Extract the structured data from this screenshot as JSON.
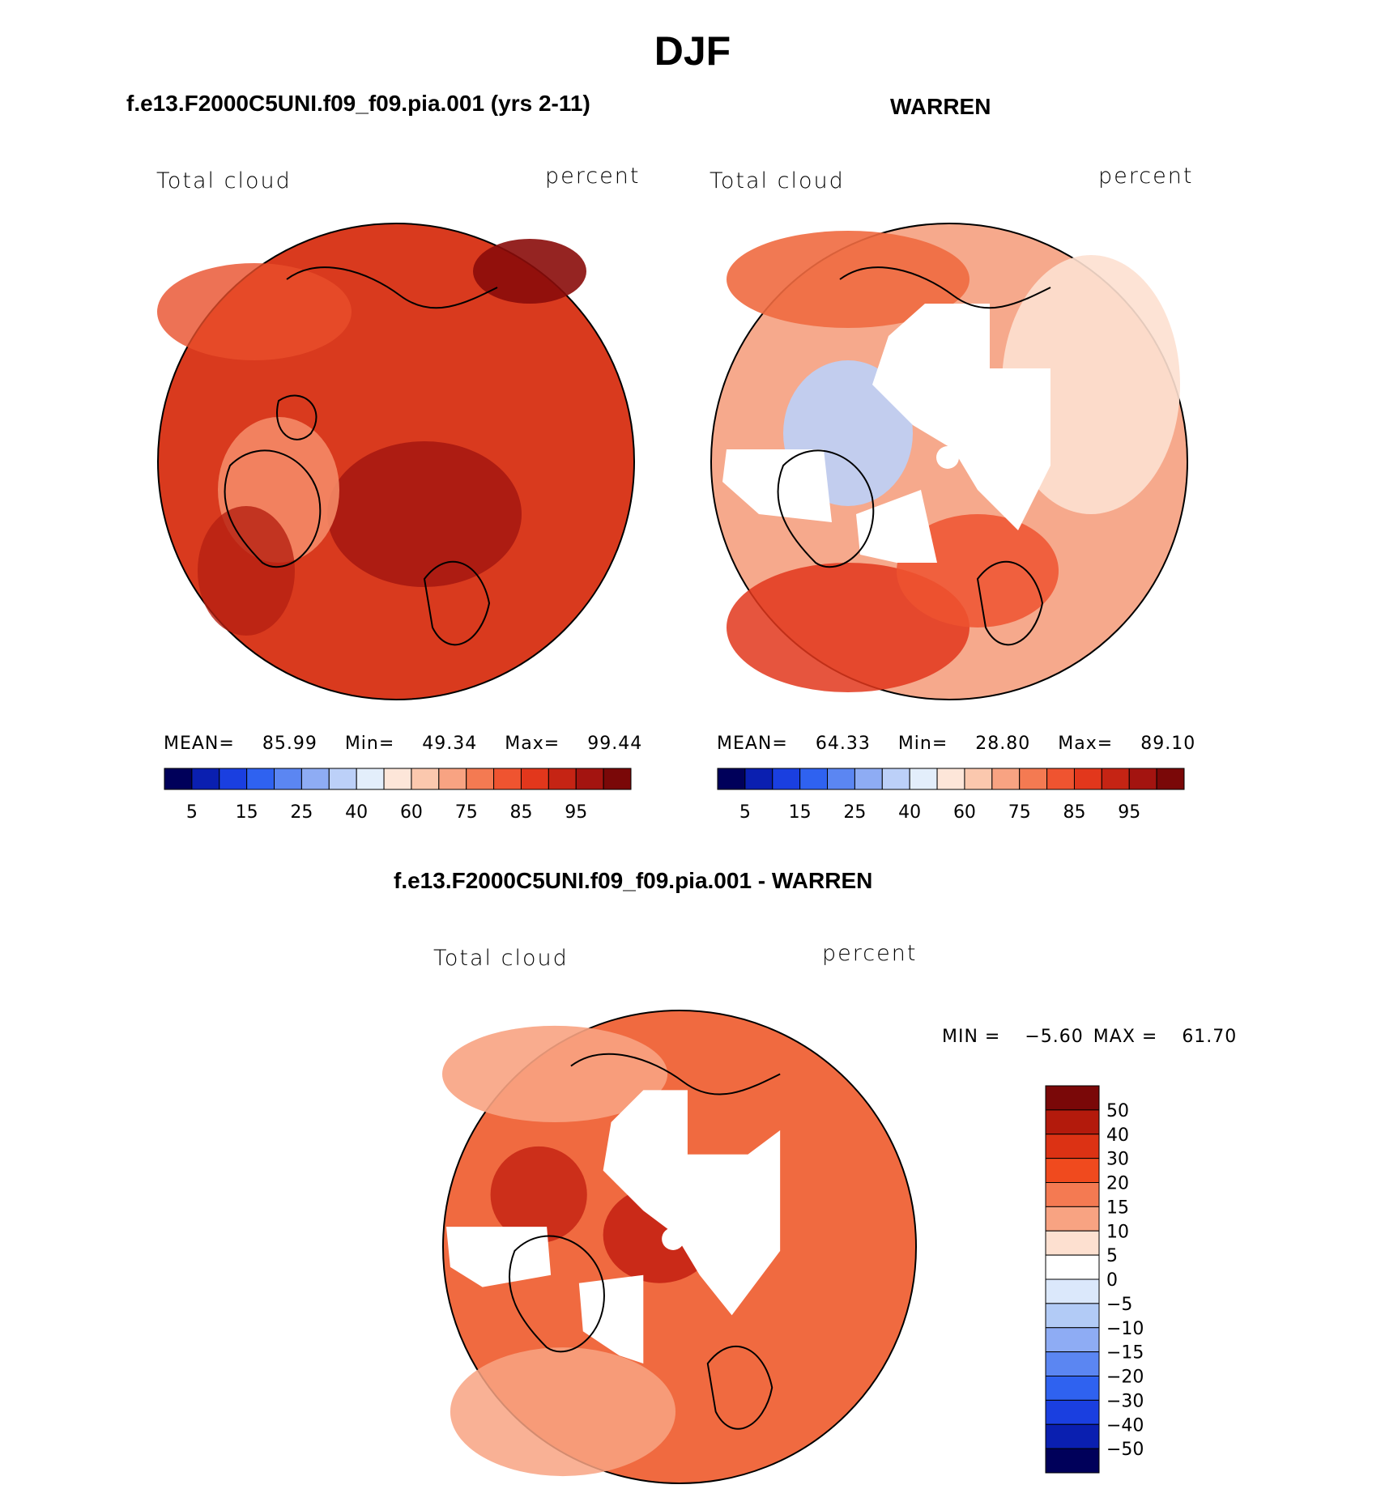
{
  "title": "DJF",
  "panels": [
    {
      "title": "f.e13.F2000C5UNI.f09_f09.pia.001 (yrs 2-11)",
      "variable": "Total cloud",
      "units": "percent",
      "stats": {
        "mean_label": "MEAN=",
        "mean": "85.99",
        "min_label": "Min=",
        "min": "49.34",
        "max_label": "Max=",
        "max": "99.44"
      },
      "map_fill": "#d93a1e"
    },
    {
      "title": "WARREN",
      "variable": "Total cloud",
      "units": "percent",
      "stats": {
        "mean_label": "MEAN=",
        "mean": "64.33",
        "min_label": "Min=",
        "min": "28.80",
        "max_label": "Max=",
        "max": "89.10"
      },
      "map_fill": "#f6a98c"
    },
    {
      "title": "f.e13.F2000C5UNI.f09_f09.pia.001 - WARREN",
      "variable": "Total cloud",
      "units": "percent",
      "stats": {
        "min_label": "MIN =",
        "min": "−5.60",
        "max_label": "MAX =",
        "max": "61.70"
      },
      "map_fill": "#f06a40"
    }
  ],
  "colorbar_abs": {
    "colors": [
      "#00005a",
      "#0a1fb0",
      "#1a3fe0",
      "#2f62f0",
      "#5b86f2",
      "#8eacf4",
      "#bcd0f8",
      "#e3eefb",
      "#fde6d9",
      "#fbc8ae",
      "#f8a382",
      "#f47a52",
      "#ef5430",
      "#e2371c",
      "#c52414",
      "#a31410",
      "#7a0808"
    ],
    "labels": [
      "5",
      "15",
      "25",
      "40",
      "60",
      "75",
      "85",
      "95"
    ]
  },
  "colorbar_diff": {
    "colors": [
      "#7a0808",
      "#b31a0c",
      "#dc3214",
      "#f04a1e",
      "#f47a52",
      "#f8a382",
      "#fde0d0",
      "#ffffff",
      "#dbe8fb",
      "#b2cbf6",
      "#8eacf4",
      "#5b86f2",
      "#2f62f0",
      "#1a3fe0",
      "#0a1fb0",
      "#00005a"
    ],
    "labels": [
      "50",
      "40",
      "30",
      "20",
      "15",
      "10",
      "5",
      "0",
      "−5",
      "−10",
      "−15",
      "−20",
      "−30",
      "−40",
      "−50"
    ]
  }
}
